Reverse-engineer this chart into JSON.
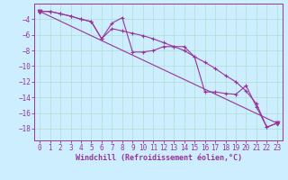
{
  "background_color": "#cceeff",
  "grid_color": "#b0ddd0",
  "line_color": "#993399",
  "xlabel": "Windchill (Refroidissement éolien,°C)",
  "xlabel_fontsize": 6,
  "tick_fontsize": 5.5,
  "xlim": [
    -0.5,
    23.5
  ],
  "ylim": [
    -19.5,
    -2.0
  ],
  "yticks": [
    -4,
    -6,
    -8,
    -10,
    -12,
    -14,
    -16,
    -18
  ],
  "xticks": [
    0,
    1,
    2,
    3,
    4,
    5,
    6,
    7,
    8,
    9,
    10,
    11,
    12,
    13,
    14,
    15,
    16,
    17,
    18,
    19,
    20,
    21,
    22,
    23
  ],
  "series1": [
    [
      0,
      -3.0
    ],
    [
      1,
      -3.0
    ],
    [
      2,
      -3.3
    ],
    [
      3,
      -3.6
    ],
    [
      4,
      -4.0
    ],
    [
      5,
      -4.3
    ],
    [
      6,
      -6.5
    ],
    [
      7,
      -4.5
    ],
    [
      8,
      -3.8
    ],
    [
      9,
      -8.2
    ],
    [
      10,
      -8.2
    ],
    [
      11,
      -8.0
    ],
    [
      12,
      -7.5
    ],
    [
      13,
      -7.5
    ],
    [
      14,
      -7.5
    ],
    [
      15,
      -8.8
    ],
    [
      16,
      -13.3
    ],
    [
      17,
      -13.3
    ],
    [
      18,
      -13.5
    ],
    [
      19,
      -13.6
    ],
    [
      20,
      -12.5
    ],
    [
      21,
      -15.2
    ],
    [
      22,
      -17.8
    ],
    [
      23,
      -17.3
    ]
  ],
  "series2": [
    [
      0,
      -3.0
    ],
    [
      1,
      -3.0
    ],
    [
      2,
      -3.3
    ],
    [
      3,
      -3.6
    ],
    [
      4,
      -4.0
    ],
    [
      5,
      -4.3
    ],
    [
      6,
      -6.5
    ],
    [
      7,
      -5.2
    ],
    [
      8,
      -5.5
    ],
    [
      9,
      -5.8
    ],
    [
      10,
      -6.1
    ],
    [
      11,
      -6.5
    ],
    [
      12,
      -7.0
    ],
    [
      13,
      -7.5
    ],
    [
      14,
      -8.0
    ],
    [
      15,
      -8.8
    ],
    [
      16,
      -9.5
    ],
    [
      17,
      -10.3
    ],
    [
      18,
      -11.2
    ],
    [
      19,
      -12.0
    ],
    [
      20,
      -13.2
    ],
    [
      21,
      -14.8
    ],
    [
      22,
      -17.8
    ],
    [
      23,
      -17.3
    ]
  ],
  "series3_x": [
    0,
    23
  ],
  "series3_y": [
    -3.0,
    -17.3
  ]
}
